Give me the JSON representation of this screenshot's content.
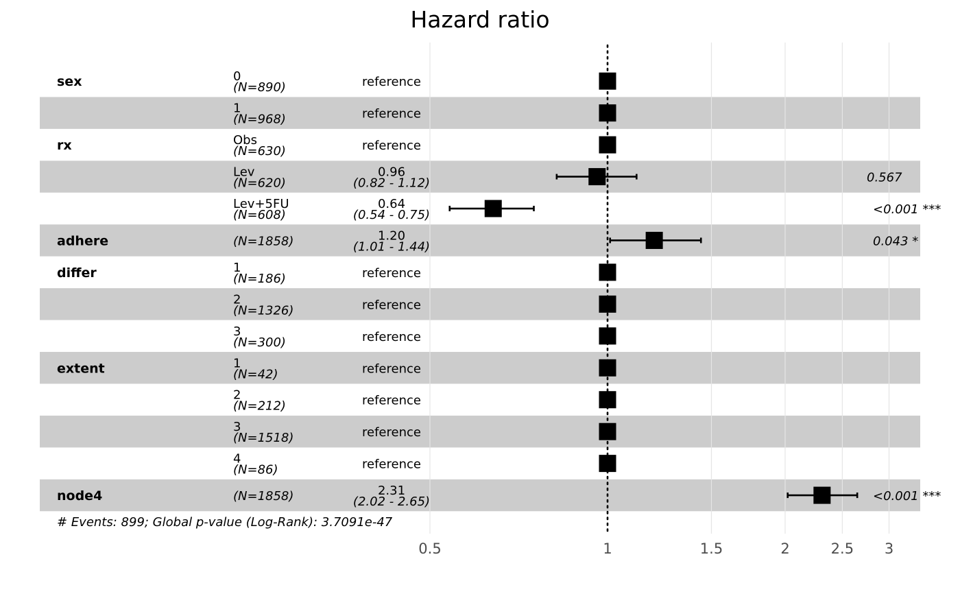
{
  "chart_data": {
    "type": "forest",
    "title": "Hazard ratio",
    "x_scale": "log",
    "xlim": [
      0.5,
      3.2
    ],
    "reference_line": 1,
    "x_ticks": [
      {
        "value": 0.5,
        "label": "0.5"
      },
      {
        "value": 1,
        "label": "1"
      },
      {
        "value": 1.5,
        "label": "1.5"
      },
      {
        "value": 2,
        "label": "2"
      },
      {
        "value": 2.5,
        "label": "2.5"
      },
      {
        "value": 3,
        "label": "3"
      }
    ],
    "rows": [
      {
        "variable": "sex",
        "level": "0",
        "n": "(N=890)",
        "estimate_label": "reference",
        "ci_label": "",
        "p_label": "",
        "hr": 1,
        "lower": null,
        "upper": null
      },
      {
        "variable": "",
        "level": "1",
        "n": "(N=968)",
        "estimate_label": "reference",
        "ci_label": "",
        "p_label": "",
        "hr": 1,
        "lower": null,
        "upper": null
      },
      {
        "variable": "rx",
        "level": "Obs",
        "n": "(N=630)",
        "estimate_label": "reference",
        "ci_label": "",
        "p_label": "",
        "hr": 1,
        "lower": null,
        "upper": null
      },
      {
        "variable": "",
        "level": "Lev",
        "n": "(N=620)",
        "estimate_label": "0.96",
        "ci_label": "(0.82 - 1.12)",
        "p_label": "0.567",
        "hr": 0.96,
        "lower": 0.82,
        "upper": 1.12
      },
      {
        "variable": "",
        "level": "Lev+5FU",
        "n": "(N=608)",
        "estimate_label": "0.64",
        "ci_label": "(0.54 - 0.75)",
        "p_label": "<0.001 ***",
        "hr": 0.64,
        "lower": 0.54,
        "upper": 0.75
      },
      {
        "variable": "adhere",
        "level": "",
        "n": "(N=1858)",
        "estimate_label": "1.20",
        "ci_label": "(1.01 - 1.44)",
        "p_label": "0.043 *",
        "hr": 1.2,
        "lower": 1.01,
        "upper": 1.44
      },
      {
        "variable": "differ",
        "level": "1",
        "n": "(N=186)",
        "estimate_label": "reference",
        "ci_label": "",
        "p_label": "",
        "hr": 1,
        "lower": null,
        "upper": null
      },
      {
        "variable": "",
        "level": "2",
        "n": "(N=1326)",
        "estimate_label": "reference",
        "ci_label": "",
        "p_label": "",
        "hr": 1,
        "lower": null,
        "upper": null
      },
      {
        "variable": "",
        "level": "3",
        "n": "(N=300)",
        "estimate_label": "reference",
        "ci_label": "",
        "p_label": "",
        "hr": 1,
        "lower": null,
        "upper": null
      },
      {
        "variable": "extent",
        "level": "1",
        "n": "(N=42)",
        "estimate_label": "reference",
        "ci_label": "",
        "p_label": "",
        "hr": 1,
        "lower": null,
        "upper": null
      },
      {
        "variable": "",
        "level": "2",
        "n": "(N=212)",
        "estimate_label": "reference",
        "ci_label": "",
        "p_label": "",
        "hr": 1,
        "lower": null,
        "upper": null
      },
      {
        "variable": "",
        "level": "3",
        "n": "(N=1518)",
        "estimate_label": "reference",
        "ci_label": "",
        "p_label": "",
        "hr": 1,
        "lower": null,
        "upper": null
      },
      {
        "variable": "",
        "level": "4",
        "n": "(N=86)",
        "estimate_label": "reference",
        "ci_label": "",
        "p_label": "",
        "hr": 1,
        "lower": null,
        "upper": null
      },
      {
        "variable": "node4",
        "level": "",
        "n": "(N=1858)",
        "estimate_label": "2.31",
        "ci_label": "(2.02 - 2.65)",
        "p_label": "<0.001 ***",
        "hr": 2.31,
        "lower": 2.02,
        "upper": 2.65
      }
    ],
    "footnote": "# Events: 899; Global p-value (Log-Rank): 3.7091e-47",
    "colors": {
      "band": "#cccccc",
      "marker": "#000000",
      "gridline": "#e5e5e5",
      "tick_text": "#4d4d4d"
    }
  }
}
